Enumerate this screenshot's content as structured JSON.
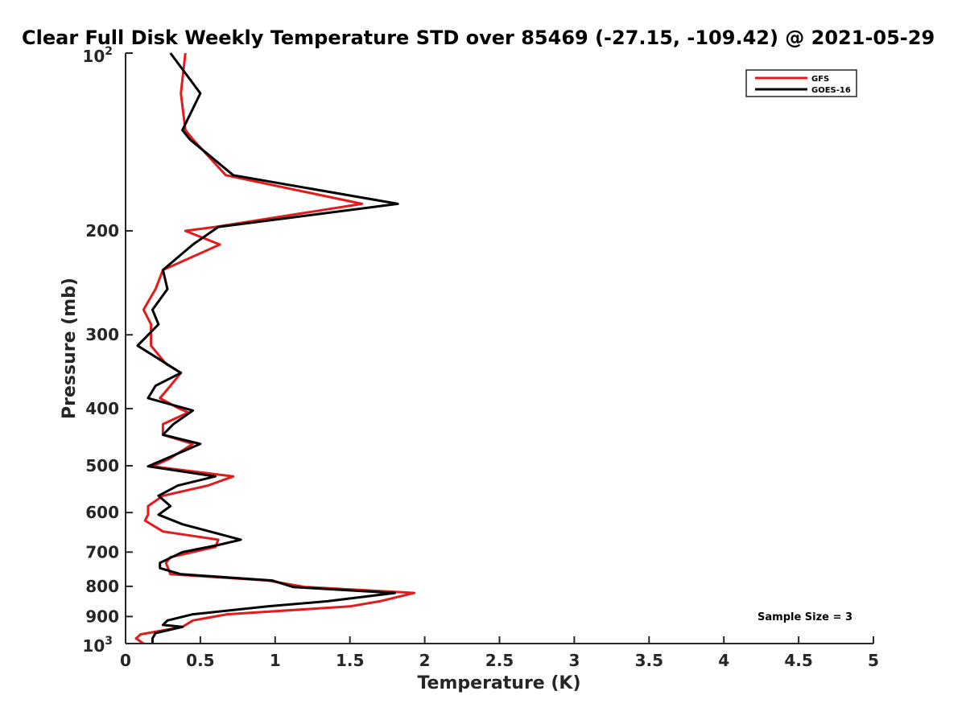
{
  "chart_data": {
    "type": "line",
    "title": "Clear Full Disk Weekly Temperature STD over 85469 (-27.15, -109.42) @ 2021-05-29",
    "xlabel": "Temperature (K)",
    "ylabel": "Pressure (mb)",
    "xlim": [
      0,
      5
    ],
    "ylim": [
      100,
      1000
    ],
    "y_scale": "log",
    "y_reversed": true,
    "x_ticks": [
      "0",
      "0.5",
      "1",
      "1.5",
      "2",
      "2.5",
      "3",
      "3.5",
      "4",
      "4.5",
      "5"
    ],
    "y_ticks": [
      {
        "value": 200,
        "label": "200"
      },
      {
        "value": 300,
        "label": "300"
      },
      {
        "value": 400,
        "label": "400"
      },
      {
        "value": 500,
        "label": "500"
      },
      {
        "value": 600,
        "label": "600"
      },
      {
        "value": 700,
        "label": "700"
      },
      {
        "value": 800,
        "label": "800"
      },
      {
        "value": 900,
        "label": "900"
      }
    ],
    "y_end_labels": {
      "top_base": "10",
      "top_exp": "2",
      "bottom_base": "10",
      "bottom_exp": "3"
    },
    "grid": false,
    "legend_position": "top-right",
    "annotation": "Sample Size = 3",
    "series": [
      {
        "name": "GFS",
        "color": "#e41a1c",
        "points": [
          [
            0.4,
            100
          ],
          [
            0.37,
            117
          ],
          [
            0.4,
            135
          ],
          [
            0.45,
            140
          ],
          [
            0.67,
            161
          ],
          [
            1.58,
            180
          ],
          [
            0.6,
            197
          ],
          [
            0.4,
            200
          ],
          [
            0.63,
            211
          ],
          [
            0.25,
            233
          ],
          [
            0.2,
            251
          ],
          [
            0.12,
            272
          ],
          [
            0.17,
            288
          ],
          [
            0.17,
            313
          ],
          [
            0.27,
            336
          ],
          [
            0.37,
            348
          ],
          [
            0.3,
            366
          ],
          [
            0.23,
            384
          ],
          [
            0.35,
            399
          ],
          [
            0.42,
            406
          ],
          [
            0.25,
            425
          ],
          [
            0.25,
            443
          ],
          [
            0.45,
            459
          ],
          [
            0.29,
            487
          ],
          [
            0.18,
            501
          ],
          [
            0.72,
            521
          ],
          [
            0.55,
            540
          ],
          [
            0.25,
            562
          ],
          [
            0.15,
            585
          ],
          [
            0.15,
            605
          ],
          [
            0.13,
            619
          ],
          [
            0.25,
            646
          ],
          [
            0.62,
            667
          ],
          [
            0.6,
            686
          ],
          [
            0.3,
            714
          ],
          [
            0.27,
            730
          ],
          [
            0.3,
            763
          ],
          [
            0.95,
            782
          ],
          [
            1.2,
            802
          ],
          [
            1.93,
            821
          ],
          [
            1.7,
            848
          ],
          [
            1.5,
            865
          ],
          [
            0.68,
            892
          ],
          [
            0.45,
            914
          ],
          [
            0.38,
            937
          ],
          [
            0.25,
            950
          ],
          [
            0.1,
            965
          ],
          [
            0.07,
            980
          ],
          [
            0.12,
            1000
          ]
        ]
      },
      {
        "name": "GOES-16",
        "color": "#000000",
        "points": [
          [
            0.3,
            100
          ],
          [
            0.5,
            117
          ],
          [
            0.38,
            135
          ],
          [
            0.43,
            140
          ],
          [
            0.72,
            161
          ],
          [
            1.82,
            180
          ],
          [
            0.62,
            197
          ],
          [
            0.45,
            211
          ],
          [
            0.25,
            233
          ],
          [
            0.28,
            251
          ],
          [
            0.18,
            272
          ],
          [
            0.22,
            288
          ],
          [
            0.08,
            313
          ],
          [
            0.37,
            348
          ],
          [
            0.2,
            366
          ],
          [
            0.15,
            384
          ],
          [
            0.45,
            403
          ],
          [
            0.32,
            425
          ],
          [
            0.25,
            443
          ],
          [
            0.5,
            459
          ],
          [
            0.15,
            501
          ],
          [
            0.6,
            521
          ],
          [
            0.35,
            540
          ],
          [
            0.22,
            562
          ],
          [
            0.3,
            585
          ],
          [
            0.22,
            605
          ],
          [
            0.38,
            628
          ],
          [
            0.77,
            667
          ],
          [
            0.62,
            681
          ],
          [
            0.38,
            700
          ],
          [
            0.23,
            730
          ],
          [
            0.23,
            745
          ],
          [
            0.37,
            763
          ],
          [
            0.98,
            782
          ],
          [
            1.12,
            802
          ],
          [
            1.8,
            821
          ],
          [
            1.35,
            848
          ],
          [
            0.95,
            865
          ],
          [
            0.45,
            892
          ],
          [
            0.28,
            914
          ],
          [
            0.25,
            930
          ],
          [
            0.38,
            937
          ],
          [
            0.2,
            960
          ],
          [
            0.18,
            980
          ],
          [
            0.18,
            1000
          ]
        ]
      }
    ]
  }
}
